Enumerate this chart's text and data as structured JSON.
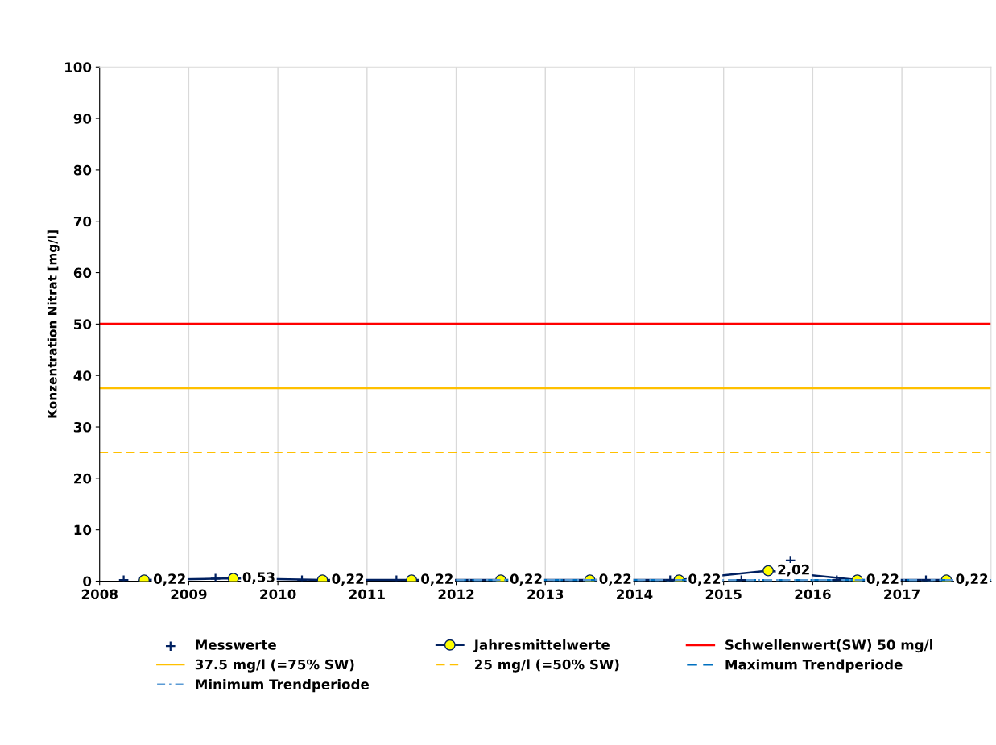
{
  "chart_data": {
    "type": "line",
    "ylabel": "Konzentration Nitrat [mg/l]",
    "xlim": [
      2008,
      2018
    ],
    "xticks": [
      2008,
      2009,
      2010,
      2011,
      2012,
      2013,
      2014,
      2015,
      2016,
      2017
    ],
    "ylim": [
      0,
      100
    ],
    "yticks": [
      0,
      10,
      20,
      30,
      40,
      50,
      60,
      70,
      80,
      90,
      100
    ],
    "grid": "x",
    "legend": "bottom",
    "series": [
      {
        "name": "Messwerte",
        "type": "scatter",
        "marker": "cross",
        "color": "#002060",
        "x": [
          2008.27,
          2009.3,
          2010.27,
          2011.33,
          2014.4,
          2015.2,
          2015.75,
          2016.27,
          2017.27
        ],
        "values": [
          0.2,
          0.5,
          0.2,
          0.2,
          0.2,
          0.2,
          4,
          0.2,
          0.2
        ]
      },
      {
        "name": "Jahresmittelwerte",
        "marker": "circle",
        "line_style": "solid",
        "color": "#002060",
        "x": [
          2008.5,
          2009.5,
          2010.5,
          2011.5,
          2012.5,
          2013.5,
          2014.5,
          2015.5,
          2016.5,
          2017.5
        ],
        "values": [
          0.22,
          0.53,
          0.22,
          0.22,
          0.22,
          0.22,
          0.22,
          2.02,
          0.22,
          0.22
        ],
        "value_labels": [
          "0,22",
          "0,53",
          "0,22",
          "0,22",
          "0,22",
          "0,22",
          "0,22",
          "2,02",
          "0,22",
          "0,22"
        ]
      },
      {
        "name": "Maximum Trendperiode",
        "marker": "none",
        "line_style": "dashed",
        "color": "#0070c0",
        "x": [
          2012,
          2018
        ],
        "values": [
          0.2,
          0.2
        ]
      },
      {
        "name": "Minimum Trendperiode",
        "marker": "none",
        "line_style": "dotted",
        "color": "#5b9bd5",
        "x": [
          2012,
          2018
        ],
        "values": [
          0.2,
          0.2
        ]
      }
    ],
    "ref_lines": [
      {
        "axis": "y",
        "value": 50,
        "label": "Schwellenwert(SW) 50 mg/l",
        "color": "#ff0000",
        "line_style": "solid"
      },
      {
        "axis": "y",
        "value": 37.5,
        "label": "37.5 mg/l (=75% SW)",
        "color": "#ffc000",
        "line_style": "solid"
      },
      {
        "axis": "y",
        "value": 25,
        "label": "25 mg/l (=50% SW)",
        "color": "#ffc000",
        "line_style": "dashed"
      }
    ]
  }
}
